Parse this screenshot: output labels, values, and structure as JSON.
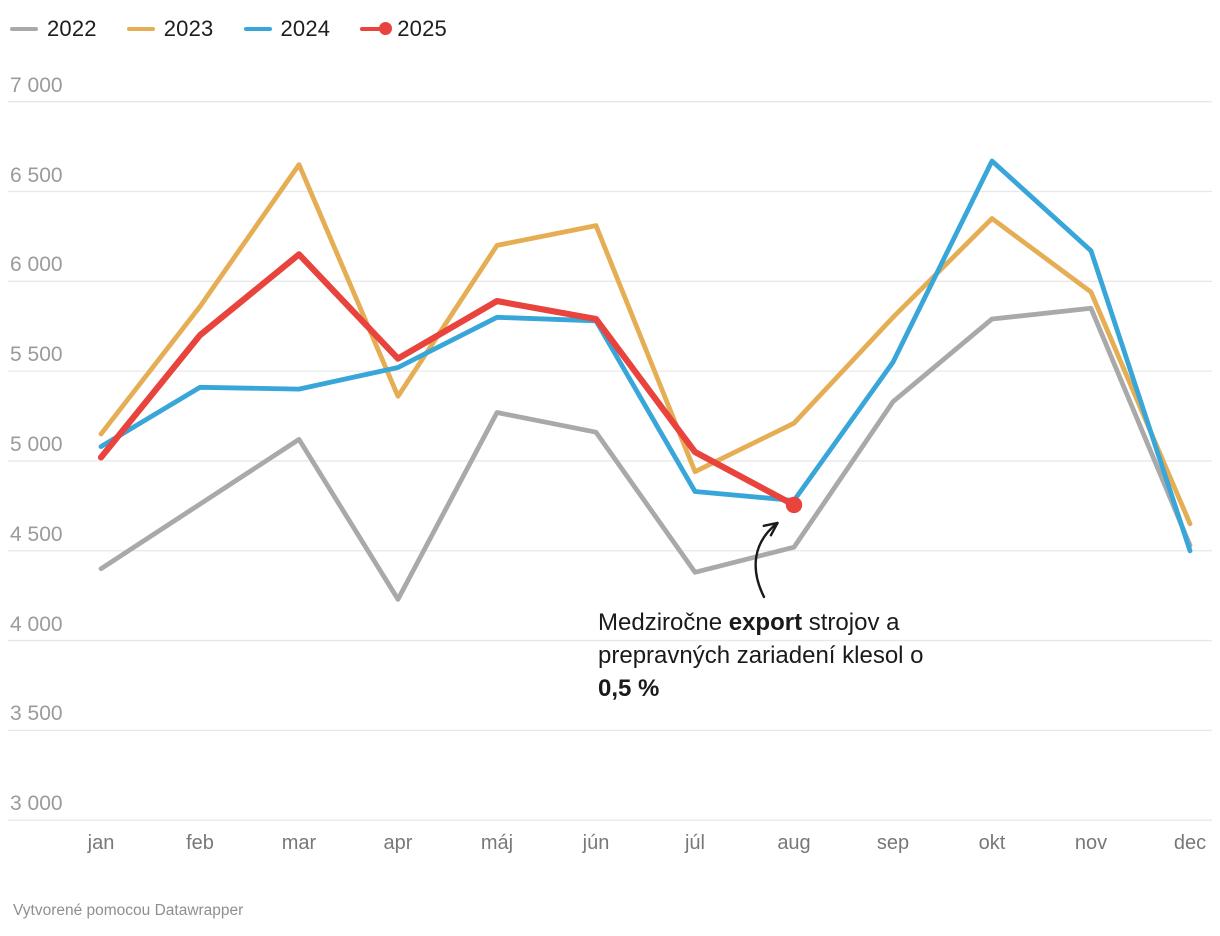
{
  "chart_data": {
    "type": "line",
    "categories": [
      "jan",
      "feb",
      "mar",
      "apr",
      "máj",
      "jún",
      "júl",
      "aug",
      "sep",
      "okt",
      "nov",
      "dec"
    ],
    "series": [
      {
        "name": "2022",
        "color": "#a9a9a9",
        "values": [
          4400,
          4760,
          5120,
          4230,
          5270,
          5160,
          4380,
          4520,
          5330,
          5790,
          5850,
          4530
        ]
      },
      {
        "name": "2023",
        "color": "#e5ae55",
        "values": [
          5150,
          5860,
          6650,
          5360,
          6200,
          6310,
          4940,
          5210,
          5800,
          6350,
          5940,
          4650
        ]
      },
      {
        "name": "2024",
        "color": "#38a6d8",
        "values": [
          5080,
          5410,
          5400,
          5520,
          5800,
          5780,
          4830,
          4780,
          5550,
          6670,
          6170,
          4500
        ]
      },
      {
        "name": "2025",
        "color": "#e8433c",
        "values": [
          5020,
          5700,
          6150,
          5570,
          5890,
          5790,
          5050,
          4755
        ],
        "endpoint_dot": true
      }
    ],
    "ylim": [
      3000,
      7000
    ],
    "y_ticks": [
      {
        "value": 7000,
        "label": "7 000"
      },
      {
        "value": 6500,
        "label": "6 500"
      },
      {
        "value": 6000,
        "label": "6 000"
      },
      {
        "value": 5500,
        "label": "5 500"
      },
      {
        "value": 5000,
        "label": "5 000"
      },
      {
        "value": 4500,
        "label": "4 500"
      },
      {
        "value": 4000,
        "label": "4 000"
      },
      {
        "value": 3500,
        "label": "3 500"
      },
      {
        "value": 3000,
        "label": "3 000"
      }
    ],
    "grid": true,
    "legend_position": "top-left",
    "annotation_target": {
      "series": "2025",
      "category": "aug",
      "value": 4755
    }
  },
  "legend": {
    "items": [
      {
        "label": "2022"
      },
      {
        "label": "2023"
      },
      {
        "label": "2024"
      },
      {
        "label": "2025"
      }
    ]
  },
  "annotation": {
    "line1_pre": "Medziročne ",
    "line1_bold": "export",
    "line1_post": " strojov a",
    "line2": "prepravných zariadení klesol o",
    "line3": "0,5 %"
  },
  "footer": {
    "text": "Vytvorené pomocou Datawrapper"
  },
  "colors": {
    "grid": "#e8e8e8",
    "axis_text": "#9b9b9e",
    "month_text": "#77787a",
    "legend_text": "#1d1d1d",
    "annotation_text": "#1a1a1a",
    "arrow": "#1a1a1a",
    "background": "#ffffff"
  }
}
